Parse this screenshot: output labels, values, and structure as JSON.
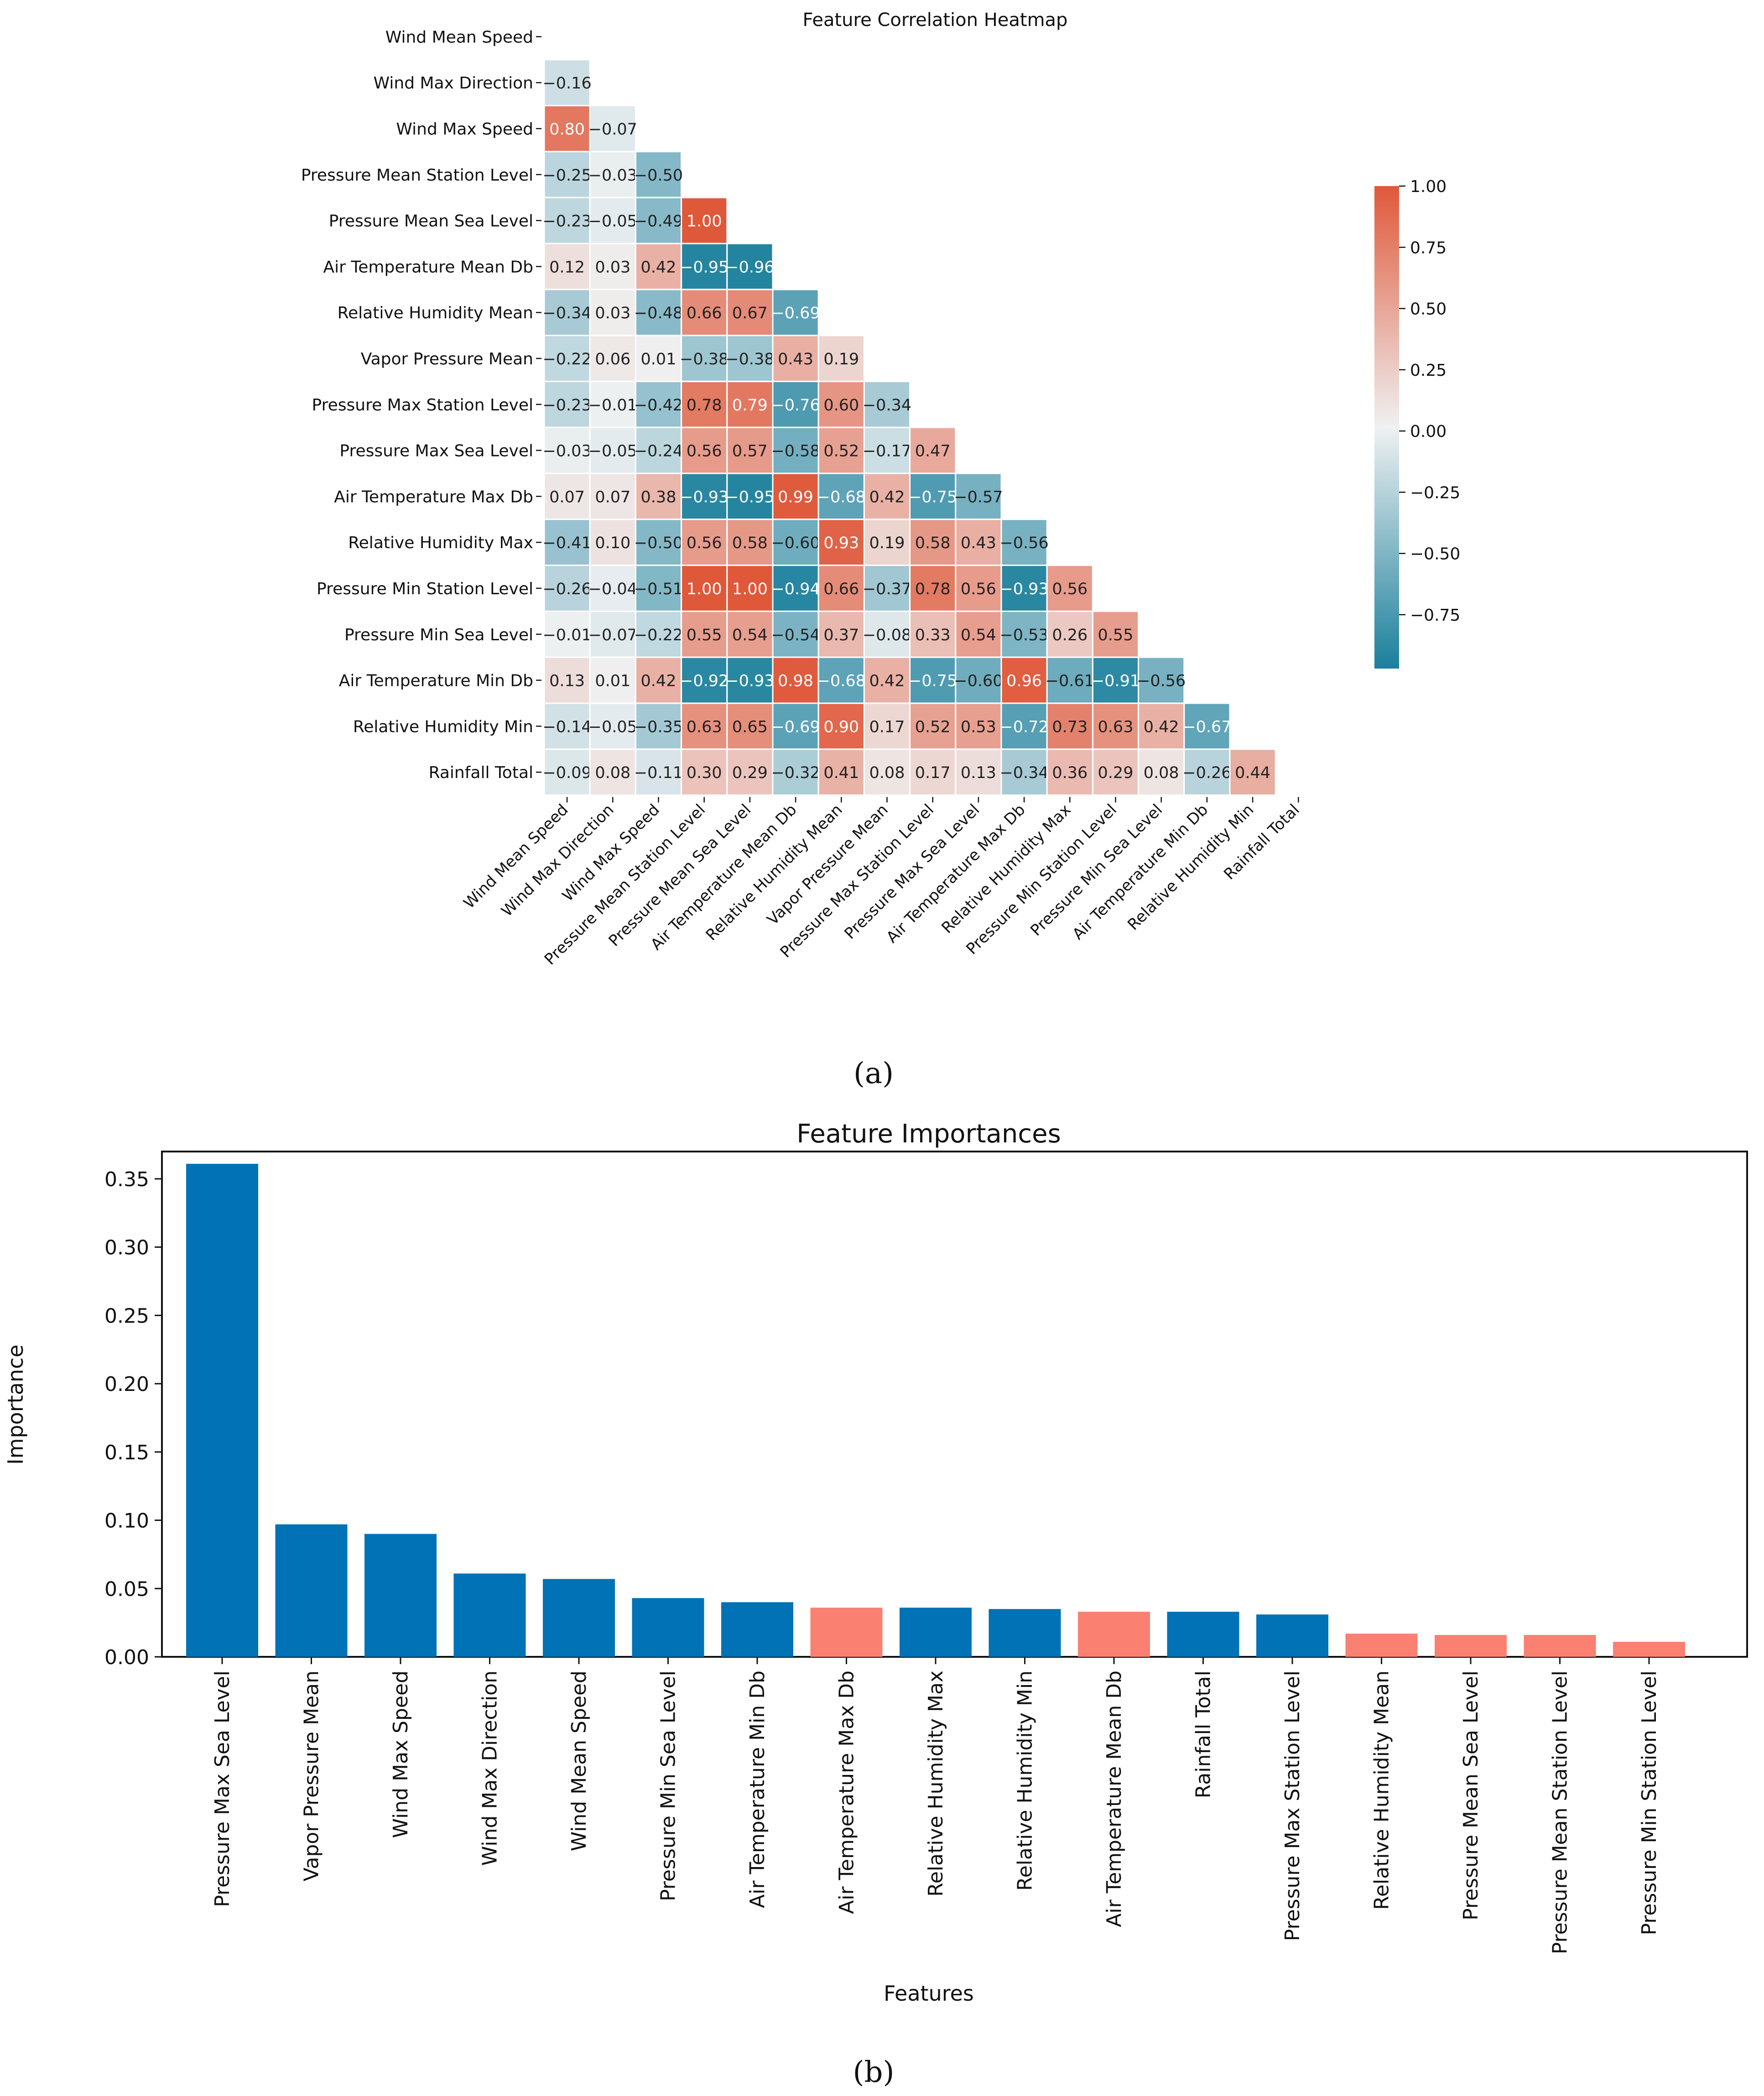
{
  "chart_data": [
    {
      "type": "heatmap",
      "title": "Feature Correlation Heatmap",
      "panel_label": "(a)",
      "labels": [
        "Wind Mean Speed",
        "Wind Max Direction",
        "Wind Max Speed",
        "Pressure Mean Station Level",
        "Pressure Mean Sea Level",
        "Air Temperature Mean Db",
        "Relative Humidity Mean",
        "Vapor Pressure Mean",
        "Pressure Max Station Level",
        "Pressure Max Sea Level",
        "Air Temperature Max Db",
        "Relative Humidity Max",
        "Pressure Min Station Level",
        "Pressure Min Sea Level",
        "Air Temperature Min Db",
        "Relative Humidity Min",
        "Rainfall Total"
      ],
      "matrix_lower": [
        [],
        [
          -0.16
        ],
        [
          0.8,
          -0.07
        ],
        [
          -0.25,
          -0.03,
          -0.5
        ],
        [
          -0.23,
          -0.05,
          -0.49,
          1.0
        ],
        [
          0.12,
          0.03,
          0.42,
          -0.95,
          -0.96
        ],
        [
          -0.34,
          0.03,
          -0.48,
          0.66,
          0.67,
          -0.69
        ],
        [
          -0.22,
          0.06,
          0.01,
          -0.38,
          -0.38,
          0.43,
          0.19
        ],
        [
          -0.23,
          -0.01,
          -0.42,
          0.78,
          0.79,
          -0.76,
          0.6,
          -0.34
        ],
        [
          -0.03,
          -0.05,
          -0.24,
          0.56,
          0.57,
          -0.58,
          0.52,
          -0.17,
          0.47
        ],
        [
          0.07,
          0.07,
          0.38,
          -0.93,
          -0.95,
          0.99,
          -0.68,
          0.42,
          -0.75,
          -0.57
        ],
        [
          -0.41,
          0.1,
          -0.5,
          0.56,
          0.58,
          -0.6,
          0.93,
          0.19,
          0.58,
          0.43,
          -0.56
        ],
        [
          -0.26,
          -0.04,
          -0.51,
          1.0,
          1.0,
          -0.94,
          0.66,
          -0.37,
          0.78,
          0.56,
          -0.93,
          0.56
        ],
        [
          -0.01,
          -0.07,
          -0.22,
          0.55,
          0.54,
          -0.54,
          0.37,
          -0.08,
          0.33,
          0.54,
          -0.53,
          0.26,
          0.55
        ],
        [
          0.13,
          0.01,
          0.42,
          -0.92,
          -0.93,
          0.98,
          -0.68,
          0.42,
          -0.75,
          -0.6,
          0.96,
          -0.61,
          -0.91,
          -0.56
        ],
        [
          -0.14,
          -0.05,
          -0.35,
          0.63,
          0.65,
          -0.69,
          0.9,
          0.17,
          0.52,
          0.53,
          -0.72,
          0.73,
          0.63,
          0.42,
          -0.67
        ],
        [
          -0.09,
          0.08,
          -0.11,
          0.3,
          0.29,
          -0.32,
          0.41,
          0.08,
          0.17,
          0.13,
          -0.34,
          0.36,
          0.29,
          0.08,
          -0.26,
          0.44
        ]
      ],
      "colorbar": {
        "range": [
          -0.97,
          1.0
        ],
        "ticks": [
          1.0,
          0.75,
          0.5,
          0.25,
          0.0,
          -0.25,
          -0.5,
          -0.75
        ],
        "tick_labels": [
          "1.00",
          "0.75",
          "0.50",
          "0.25",
          "0.00",
          "−0.25",
          "−0.50",
          "−0.75"
        ],
        "colors": {
          "negative": "#1a7f9c",
          "neutral": "#eff1f2",
          "positive": "#e0583a"
        }
      }
    },
    {
      "type": "bar",
      "title": "Feature Importances",
      "panel_label": "(b)",
      "xlabel": "Features",
      "ylabel": "Importance",
      "ylim": [
        0,
        0.37
      ],
      "yticks": [
        0.0,
        0.05,
        0.1,
        0.15,
        0.2,
        0.25,
        0.3,
        0.35
      ],
      "ytick_labels": [
        "0.00",
        "0.05",
        "0.10",
        "0.15",
        "0.20",
        "0.25",
        "0.30",
        "0.35"
      ],
      "categories": [
        "Pressure Max Sea Level",
        "Vapor Pressure Mean",
        "Wind Max Speed",
        "Wind Max Direction",
        "Wind Mean Speed",
        "Pressure Min Sea Level",
        "Air Temperature Min Db",
        "Air Temperature Max Db",
        "Relative Humidity Max",
        "Relative Humidity Min",
        "Air Temperature Mean Db",
        "Rainfall Total",
        "Pressure Max Station Level",
        "Relative Humidity Mean",
        "Pressure Mean Sea Level",
        "Pressure Mean Station Level",
        "Pressure Min Station Level"
      ],
      "values": [
        0.361,
        0.097,
        0.09,
        0.061,
        0.057,
        0.043,
        0.04,
        0.036,
        0.036,
        0.035,
        0.033,
        0.033,
        0.031,
        0.017,
        0.016,
        0.016,
        0.011
      ],
      "bar_colors": [
        "#0072b5",
        "#0072b5",
        "#0072b5",
        "#0072b5",
        "#0072b5",
        "#0072b5",
        "#0072b5",
        "#fa8072",
        "#0072b5",
        "#0072b5",
        "#fa8072",
        "#0072b5",
        "#0072b5",
        "#fa8072",
        "#fa8072",
        "#fa8072",
        "#fa8072"
      ]
    }
  ]
}
